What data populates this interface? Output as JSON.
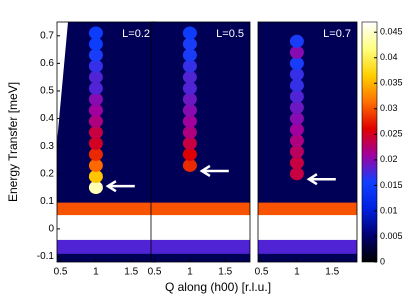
{
  "chart_data": {
    "type": "heatmap",
    "xlabel": "Q along (h00) [r.l.u.]",
    "ylabel": "Energy Transfer [meV]",
    "xlim": [
      0.45,
      1.85
    ],
    "xticks": [
      0.5,
      1,
      1.5
    ],
    "ylim": [
      -0.12,
      0.75
    ],
    "yticks": [
      0.7,
      0.6,
      0.5,
      0.4,
      0.3,
      0.2,
      0.1,
      0,
      -0.1
    ],
    "clim": [
      0,
      0.047
    ],
    "cticks": [
      0.045,
      0.04,
      0.035,
      0.03,
      0.025,
      0.02,
      0.015,
      0.01,
      0.005,
      0
    ],
    "colormap": [
      "#000000",
      "#000070",
      "#0020e0",
      "#1040ff",
      "#a000a0",
      "#e00000",
      "#ff7000",
      "#ffd000",
      "#ffff80",
      "#ffffff"
    ],
    "background_intensity": 0.004,
    "elastic": {
      "energies": [
        0.07,
        -0.065
      ],
      "intensities": [
        0.03,
        0.018
      ],
      "saturated_range": [
        -0.04,
        0.05
      ]
    },
    "panels": [
      {
        "label": "L=0.2",
        "arrow_energy": 0.155,
        "energies": [
          0.15,
          0.19,
          0.23,
          0.27,
          0.31,
          0.35,
          0.39,
          0.43,
          0.47,
          0.51,
          0.55,
          0.59,
          0.63,
          0.67,
          0.71
        ],
        "intensities": [
          0.044,
          0.036,
          0.031,
          0.028,
          0.025,
          0.024,
          0.022,
          0.021,
          0.02,
          0.018,
          0.018,
          0.017,
          0.016,
          0.015,
          0.015
        ]
      },
      {
        "label": "L=0.5",
        "arrow_energy": 0.21,
        "energies": [
          0.23,
          0.27,
          0.31,
          0.35,
          0.39,
          0.43,
          0.47,
          0.51,
          0.55,
          0.59,
          0.63,
          0.67,
          0.71
        ],
        "intensities": [
          0.028,
          0.026,
          0.024,
          0.022,
          0.021,
          0.02,
          0.019,
          0.018,
          0.018,
          0.017,
          0.016,
          0.016,
          0.015
        ]
      },
      {
        "label": "L=0.7",
        "arrow_energy": 0.18,
        "energies": [
          0.2,
          0.24,
          0.28,
          0.32,
          0.36,
          0.4,
          0.44,
          0.48,
          0.52,
          0.56,
          0.6,
          0.64,
          0.68
        ],
        "intensities": [
          0.024,
          0.024,
          0.023,
          0.022,
          0.021,
          0.02,
          0.019,
          0.018,
          0.017,
          0.017,
          0.016,
          0.02,
          0.016
        ]
      }
    ]
  }
}
